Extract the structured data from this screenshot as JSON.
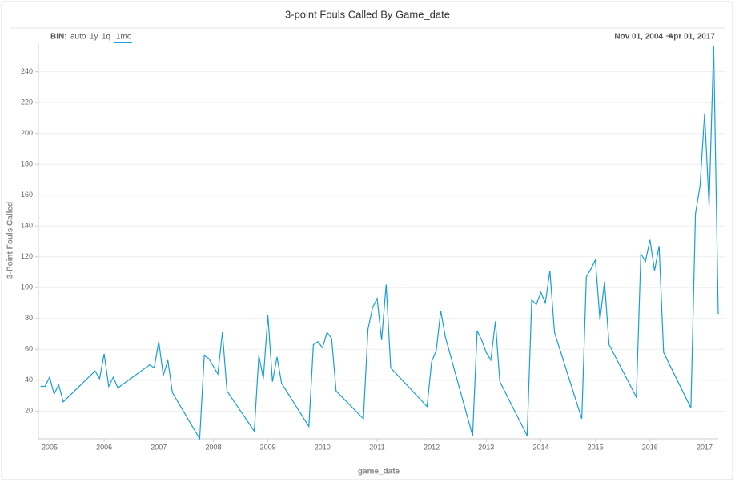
{
  "chart_data": {
    "type": "line",
    "title": "3-point Fouls Called By Game_date",
    "x_label": "game_date",
    "y_label": "3-Point Fouls Called",
    "x": [
      "2004-11",
      "2004-12",
      "2005-01",
      "2005-02",
      "2005-03",
      "2005-04",
      "2005-11",
      "2005-12",
      "2006-01",
      "2006-02",
      "2006-03",
      "2006-04",
      "2006-11",
      "2006-12",
      "2007-01",
      "2007-02",
      "2007-03",
      "2007-04",
      "2007-10",
      "2007-11",
      "2007-12",
      "2008-01",
      "2008-02",
      "2008-03",
      "2008-04",
      "2008-10",
      "2008-11",
      "2008-12",
      "2009-01",
      "2009-02",
      "2009-03",
      "2009-04",
      "2009-10",
      "2009-11",
      "2009-12",
      "2010-01",
      "2010-02",
      "2010-03",
      "2010-04",
      "2010-10",
      "2010-11",
      "2010-12",
      "2011-01",
      "2011-02",
      "2011-03",
      "2011-04",
      "2011-12",
      "2012-01",
      "2012-02",
      "2012-03",
      "2012-04",
      "2012-10",
      "2012-11",
      "2012-12",
      "2013-01",
      "2013-02",
      "2013-03",
      "2013-04",
      "2013-10",
      "2013-11",
      "2013-12",
      "2014-01",
      "2014-02",
      "2014-03",
      "2014-04",
      "2014-10",
      "2014-11",
      "2014-12",
      "2015-01",
      "2015-02",
      "2015-03",
      "2015-04",
      "2015-10",
      "2015-11",
      "2015-12",
      "2016-01",
      "2016-02",
      "2016-03",
      "2016-04",
      "2016-10",
      "2016-11",
      "2016-12",
      "2017-01",
      "2017-02",
      "2017-03",
      "2017-04"
    ],
    "series": [
      {
        "name": "3-Point Fouls Called",
        "color": "#1a9ed9",
        "values": [
          36,
          36,
          42,
          31,
          37,
          26,
          46,
          41,
          57,
          36,
          42,
          35,
          50,
          48,
          65,
          43,
          53,
          32,
          2,
          56,
          54,
          49,
          44,
          71,
          33,
          7,
          56,
          41,
          82,
          39,
          55,
          38,
          10,
          63,
          65,
          61,
          71,
          67,
          33,
          15,
          73,
          87,
          93,
          66,
          102,
          48,
          23,
          52,
          59,
          85,
          68,
          4,
          72,
          66,
          58,
          53,
          78,
          39,
          4,
          92,
          89,
          97,
          90,
          111,
          71,
          15,
          107,
          112,
          118,
          79,
          104,
          63,
          29,
          122,
          117,
          131,
          111,
          127,
          58,
          22,
          148,
          166,
          213,
          153,
          257,
          83
        ]
      }
    ],
    "xlim": [
      "2004-11",
      "2017-04"
    ],
    "xticks": [
      {
        "value": "2005-01",
        "label": "2005"
      },
      {
        "value": "2006-01",
        "label": "2006"
      },
      {
        "value": "2007-01",
        "label": "2007"
      },
      {
        "value": "2008-01",
        "label": "2008"
      },
      {
        "value": "2009-01",
        "label": "2009"
      },
      {
        "value": "2010-01",
        "label": "2010"
      },
      {
        "value": "2011-01",
        "label": "2011"
      },
      {
        "value": "2012-01",
        "label": "2012"
      },
      {
        "value": "2013-01",
        "label": "2013"
      },
      {
        "value": "2014-01",
        "label": "2014"
      },
      {
        "value": "2015-01",
        "label": "2015"
      },
      {
        "value": "2016-01",
        "label": "2016"
      },
      {
        "value": "2017-01",
        "label": "2017"
      }
    ],
    "ylim": [
      2,
      258
    ],
    "yticks": [
      20,
      40,
      60,
      80,
      100,
      120,
      140,
      160,
      180,
      200,
      220,
      240
    ],
    "grid": true
  },
  "controls": {
    "bin_label": "BIN:",
    "bin_options": [
      "auto",
      "1y",
      "1q",
      "1mo"
    ],
    "date_range": [
      "Nov 01, 2004",
      "Apr 01, 2017"
    ]
  }
}
